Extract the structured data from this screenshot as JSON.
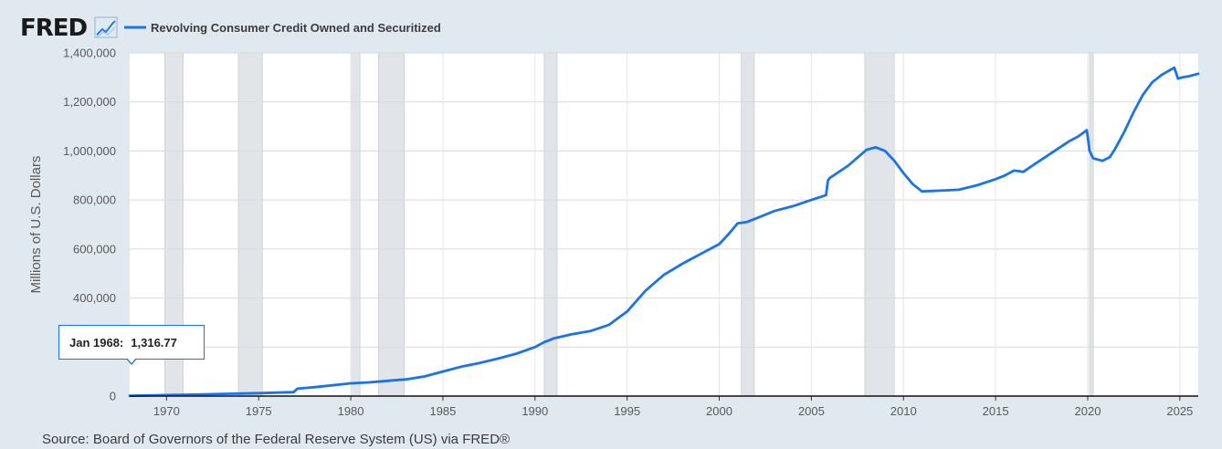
{
  "logo": {
    "text": "FRED"
  },
  "legend": {
    "label": "Revolving Consumer Credit Owned and Securitized",
    "color": "#1a73e8"
  },
  "tooltip": {
    "date": "Jan 1968:",
    "value": "1,316.77"
  },
  "source": "Source: Board of Governors of the Federal Reserve System (US) via FRED®",
  "chart_data": {
    "type": "line",
    "title": "Revolving Consumer Credit Owned and Securitized",
    "xlabel": "",
    "ylabel": "Millions of U.S. Dollars",
    "xlim": [
      1968.0,
      2026.0
    ],
    "ylim": [
      0,
      1400000
    ],
    "x_ticks": [
      1970,
      1975,
      1980,
      1985,
      1990,
      1995,
      2000,
      2005,
      2010,
      2015,
      2020,
      2025
    ],
    "x_tick_labels": [
      "1970",
      "1975",
      "1980",
      "1985",
      "1990",
      "1995",
      "2000",
      "2005",
      "2010",
      "2015",
      "2020",
      "2025"
    ],
    "y_ticks": [
      0,
      200000,
      400000,
      600000,
      800000,
      1000000,
      1200000,
      1400000
    ],
    "y_tick_labels": [
      "0",
      "",
      "400,000",
      "600,000",
      "800,000",
      "1,000,000",
      "1,200,000",
      "1,400,000"
    ],
    "grid": true,
    "recessions": [
      [
        1969.9,
        1970.9
      ],
      [
        1973.9,
        1975.2
      ],
      [
        1980.0,
        1980.5
      ],
      [
        1981.5,
        1982.9
      ],
      [
        1990.5,
        1991.2
      ],
      [
        2001.2,
        2001.9
      ],
      [
        2007.9,
        2009.5
      ],
      [
        2020.1,
        2020.3
      ]
    ],
    "recession_color": "#e1e5ea",
    "series": [
      {
        "name": "Revolving Consumer Credit Owned and Securitized",
        "color": "#1a73e8",
        "x": [
          1968.0,
          1970.0,
          1972.0,
          1975.0,
          1976.0,
          1976.9,
          1977.1,
          1978.0,
          1979.0,
          1980.0,
          1981.0,
          1982.0,
          1983.0,
          1984.0,
          1985.0,
          1986.0,
          1987.0,
          1988.0,
          1989.0,
          1990.0,
          1990.5,
          1991.0,
          1992.0,
          1993.0,
          1994.0,
          1995.0,
          1996.0,
          1997.0,
          1998.0,
          1999.0,
          2000.0,
          2000.5,
          2001.0,
          2001.5,
          2002.0,
          2003.0,
          2004.0,
          2005.0,
          2005.8,
          2005.9,
          2006.0,
          2007.0,
          2008.0,
          2008.5,
          2009.0,
          2009.5,
          2010.0,
          2010.5,
          2011.0,
          2012.0,
          2013.0,
          2014.0,
          2015.0,
          2015.5,
          2016.0,
          2016.5,
          2017.0,
          2018.0,
          2019.0,
          2019.5,
          2019.95,
          2020.1,
          2020.3,
          2020.8,
          2021.2,
          2021.5,
          2022.0,
          2022.5,
          2023.0,
          2023.5,
          2024.0,
          2024.7,
          2024.9,
          2025.1,
          2025.5,
          2026.0
        ],
        "y": [
          1300,
          4000,
          7000,
          12000,
          14000,
          16000,
          30000,
          36000,
          44000,
          52000,
          56000,
          62000,
          68000,
          80000,
          100000,
          120000,
          135000,
          153000,
          173000,
          200000,
          220000,
          235000,
          252000,
          265000,
          290000,
          345000,
          430000,
          495000,
          540000,
          580000,
          620000,
          660000,
          705000,
          710000,
          725000,
          755000,
          775000,
          800000,
          820000,
          880000,
          890000,
          940000,
          1005000,
          1015000,
          1000000,
          960000,
          910000,
          865000,
          835000,
          838000,
          842000,
          860000,
          885000,
          900000,
          920000,
          915000,
          940000,
          990000,
          1040000,
          1060000,
          1085000,
          1000000,
          970000,
          960000,
          975000,
          1010000,
          1080000,
          1160000,
          1230000,
          1280000,
          1310000,
          1340000,
          1295000,
          1300000,
          1305000,
          1315000
        ]
      }
    ]
  }
}
